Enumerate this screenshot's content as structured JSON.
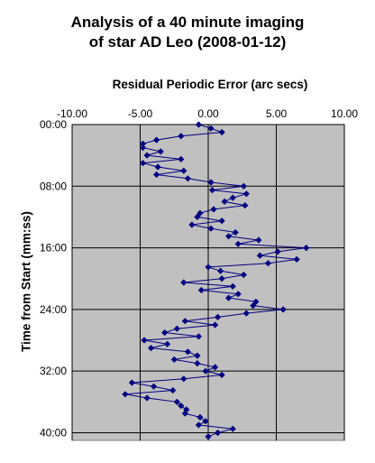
{
  "chart_data": {
    "type": "scatter",
    "title_line1": "Analysis of a 40 minute imaging",
    "title_line2": "of star AD Leo (2008-01-12)",
    "xlabel": "Residual Periodic Error (arc secs)",
    "ylabel": "Time from Start (mm:ss)",
    "xlim": [
      -10,
      10
    ],
    "ylim_seconds": [
      0,
      2460
    ],
    "x_ticks": [
      "-10.00",
      "-5.00",
      "0.00",
      "5.00",
      "10.00"
    ],
    "y_ticks": [
      "00:00",
      "08:00",
      "16:00",
      "24:00",
      "32:00",
      "40:00"
    ],
    "grid": true,
    "plot_background": "#c0c0c0",
    "series_color": "#000080",
    "series": [
      {
        "times": [
          "00:00",
          "00:30",
          "01:00",
          "01:30",
          "02:00",
          "02:30",
          "03:00",
          "03:30",
          "04:00",
          "04:30",
          "05:00",
          "05:30",
          "06:00",
          "06:30",
          "07:00",
          "07:30",
          "08:00",
          "08:30",
          "09:00",
          "09:30",
          "10:00",
          "10:30",
          "11:00",
          "11:30",
          "12:00",
          "12:30",
          "13:00",
          "13:30",
          "14:00",
          "14:30",
          "15:00",
          "15:30",
          "16:00",
          "16:30",
          "17:00",
          "17:30",
          "18:00",
          "18:30",
          "19:00",
          "19:30",
          "20:00",
          "20:30",
          "21:00",
          "21:30",
          "22:00",
          "22:30",
          "23:00",
          "23:30",
          "24:00",
          "24:30",
          "25:00",
          "25:30",
          "26:00",
          "26:30",
          "27:00",
          "27:30",
          "28:00",
          "28:30",
          "29:00",
          "29:30",
          "30:00",
          "30:30",
          "31:00",
          "31:30",
          "32:00",
          "32:30",
          "33:00",
          "33:30",
          "34:00",
          "34:30",
          "35:00",
          "35:30",
          "36:00",
          "36:30",
          "37:00",
          "37:30",
          "38:00",
          "38:30",
          "39:00",
          "39:30",
          "40:00",
          "40:30"
        ],
        "values": [
          -0.7,
          0.2,
          1.0,
          -2.0,
          -3.8,
          -4.8,
          -4.8,
          -3.5,
          -4.5,
          -2.0,
          -4.8,
          -3.7,
          -1.8,
          -3.8,
          -1.5,
          0.2,
          2.6,
          0.3,
          2.8,
          1.8,
          1.2,
          2.7,
          0.4,
          -0.6,
          -0.8,
          1.0,
          -1.2,
          0.2,
          2.0,
          1.5,
          3.7,
          2.2,
          7.2,
          5.1,
          3.8,
          6.5,
          4.4,
          0.0,
          0.9,
          2.6,
          1.0,
          -1.8,
          1.8,
          -0.5,
          2.2,
          1.5,
          3.5,
          3.3,
          5.5,
          2.8,
          0.7,
          -1.7,
          0.5,
          -2.3,
          -3.2,
          -0.7,
          -4.7,
          -3.0,
          -4.2,
          -1.5,
          -0.8,
          -2.5,
          -0.8,
          0.5,
          -0.2,
          1.0,
          -1.8,
          -5.6,
          -4.0,
          -2.6,
          -6.1,
          -4.5,
          -2.3,
          -2.0,
          -1.6,
          -1.7,
          -0.6,
          -0.2,
          -0.7,
          1.8,
          0.7,
          0.0
        ]
      }
    ]
  }
}
